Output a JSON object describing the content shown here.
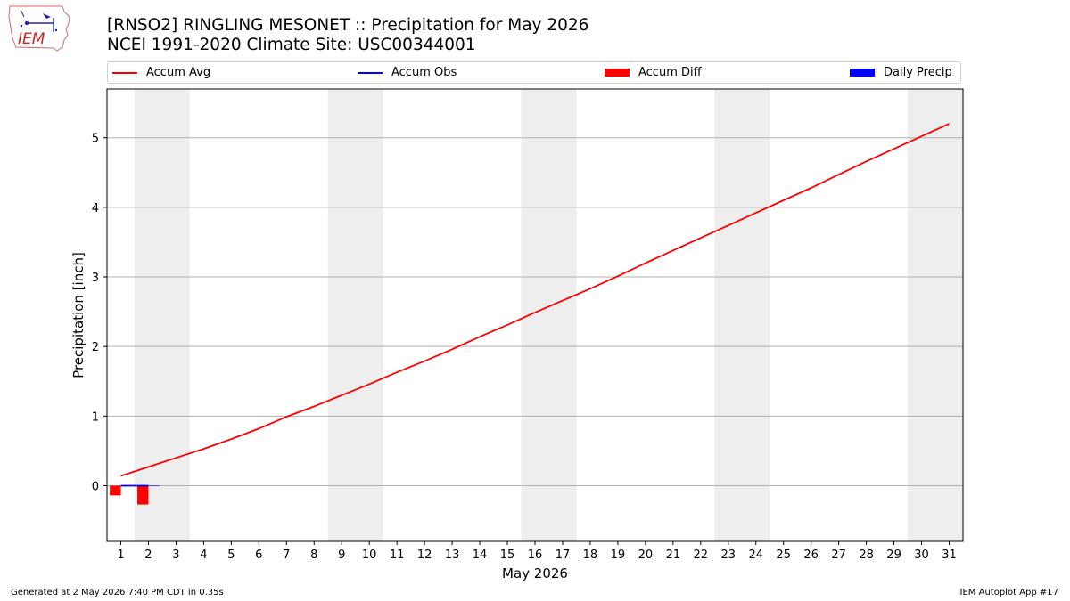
{
  "header": {
    "title_line1": "[RNSO2] RINGLING MESONET :: Precipitation for May 2026",
    "title_line2": "NCEI 1991-2020 Climate Site: USC00344001",
    "logo_text": "IEM"
  },
  "footer": {
    "generated": "Generated at 2 May 2026 7:40 PM CDT in 0.35s",
    "app": "IEM Autoplot App #17"
  },
  "chart_data": {
    "type": "line",
    "title": "[RNSO2] RINGLING MESONET :: Precipitation for May 2026",
    "subtitle": "NCEI 1991-2020 Climate Site: USC00344001",
    "xlabel": "May 2026",
    "ylabel": "Precipitation [inch]",
    "xlim": [
      0.5,
      31.5
    ],
    "ylim": [
      -0.8,
      5.7
    ],
    "x_ticks": [
      1,
      2,
      3,
      4,
      5,
      6,
      7,
      8,
      9,
      10,
      11,
      12,
      13,
      14,
      15,
      16,
      17,
      18,
      19,
      20,
      21,
      22,
      23,
      24,
      25,
      26,
      27,
      28,
      29,
      30,
      31
    ],
    "y_ticks": [
      0,
      1,
      2,
      3,
      4,
      5
    ],
    "grid": "y",
    "legend_placement": "top",
    "weekend_bands": [
      [
        1.5,
        3.5
      ],
      [
        8.5,
        10.5
      ],
      [
        15.5,
        17.5
      ],
      [
        22.5,
        24.5
      ],
      [
        29.5,
        31.5
      ]
    ],
    "colors": {
      "accum_avg": "#ff0000",
      "accum_obs": "#0000ff",
      "accum_diff": "#ff0000",
      "daily_precip": "#0000ff",
      "band": "#eeeeee",
      "grid": "#b0b0b0"
    },
    "series": [
      {
        "name": "Accum Avg",
        "kind": "line",
        "x": [
          1,
          2,
          3,
          4,
          5,
          6,
          7,
          8,
          9,
          10,
          11,
          12,
          13,
          14,
          15,
          16,
          17,
          18,
          19,
          20,
          21,
          22,
          23,
          24,
          25,
          26,
          27,
          28,
          29,
          30,
          31
        ],
        "values": [
          0.14,
          0.27,
          0.4,
          0.53,
          0.67,
          0.82,
          0.99,
          1.14,
          1.3,
          1.46,
          1.63,
          1.79,
          1.96,
          2.14,
          2.31,
          2.49,
          2.66,
          2.83,
          3.01,
          3.2,
          3.38,
          3.56,
          3.74,
          3.92,
          4.1,
          4.28,
          4.47,
          4.66,
          4.84,
          5.02,
          5.2
        ]
      },
      {
        "name": "Accum Obs",
        "kind": "line",
        "x": [
          1,
          2
        ],
        "values": [
          0.0,
          0.0
        ]
      },
      {
        "name": "Accum Diff",
        "kind": "bar",
        "x": [
          1,
          2
        ],
        "values": [
          -0.14,
          -0.27
        ]
      },
      {
        "name": "Daily Precip",
        "kind": "bar",
        "x": [
          1,
          2
        ],
        "values": [
          0.0,
          0.0
        ]
      }
    ]
  }
}
